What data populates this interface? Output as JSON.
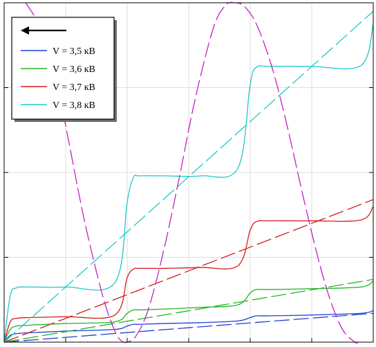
{
  "chart_data": {
    "type": "line",
    "title": "",
    "xlabel": "",
    "ylabel": "",
    "xlim": [
      0,
      6
    ],
    "ylim": [
      0,
      4
    ],
    "grid": true,
    "legend_placement": "top-left",
    "legend": {
      "arrow": "left-arrow",
      "entries": [
        {
          "label": "V = 3,5 кВ",
          "color": "#1f3fd6"
        },
        {
          "label": "V = 3,6 кВ",
          "color": "#22b422"
        },
        {
          "label": "V = 3,7 кВ",
          "color": "#d41a1a"
        },
        {
          "label": "V = 3,8 кВ",
          "color": "#1fc8c8"
        }
      ]
    },
    "series": [
      {
        "color": "#1f3fd6",
        "style": "solid",
        "x": [
          0,
          0.1,
          0.2,
          0.4,
          1.0,
          1.8,
          2.0,
          2.1,
          2.2,
          2.6,
          3.2,
          3.8,
          4.0,
          4.1,
          4.3,
          5.0,
          5.8,
          6.0
        ],
        "y": [
          0,
          0.08,
          0.1,
          0.11,
          0.13,
          0.15,
          0.19,
          0.21,
          0.21,
          0.22,
          0.23,
          0.25,
          0.29,
          0.31,
          0.31,
          0.32,
          0.34,
          0.37
        ]
      },
      {
        "color": "#1f3fd6",
        "style": "dashed",
        "x": [
          0,
          6
        ],
        "y": [
          0,
          0.34
        ]
      },
      {
        "color": "#22b422",
        "style": "solid",
        "x": [
          0,
          0.1,
          0.2,
          0.4,
          1.0,
          1.8,
          2.0,
          2.1,
          2.2,
          2.6,
          3.2,
          3.8,
          4.0,
          4.1,
          4.3,
          5.0,
          5.8,
          6.0
        ],
        "y": [
          0,
          0.15,
          0.19,
          0.2,
          0.22,
          0.24,
          0.34,
          0.38,
          0.38,
          0.39,
          0.41,
          0.44,
          0.58,
          0.62,
          0.62,
          0.63,
          0.65,
          0.72
        ]
      },
      {
        "color": "#22b422",
        "style": "dashed",
        "x": [
          0,
          6
        ],
        "y": [
          0,
          0.74
        ]
      },
      {
        "color": "#d41a1a",
        "style": "solid",
        "x": [
          0,
          0.1,
          0.2,
          0.4,
          1.0,
          1.8,
          2.0,
          2.1,
          2.2,
          2.6,
          3.2,
          3.8,
          4.0,
          4.1,
          4.3,
          5.0,
          5.8,
          6.0
        ],
        "y": [
          0,
          0.24,
          0.28,
          0.29,
          0.3,
          0.32,
          0.76,
          0.86,
          0.87,
          0.87,
          0.88,
          0.9,
          1.32,
          1.42,
          1.43,
          1.43,
          1.44,
          1.6
        ]
      },
      {
        "color": "#d41a1a",
        "style": "dashed",
        "x": [
          0,
          6
        ],
        "y": [
          0,
          1.68
        ]
      },
      {
        "color": "#1fc8c8",
        "style": "solid",
        "x": [
          0,
          0.1,
          0.2,
          0.4,
          1.0,
          1.8,
          2.0,
          2.1,
          2.2,
          2.6,
          3.2,
          3.8,
          4.0,
          4.1,
          4.3,
          5.0,
          5.8,
          6.0
        ],
        "y": [
          0,
          0.55,
          0.64,
          0.65,
          0.65,
          0.7,
          1.65,
          1.94,
          1.96,
          1.96,
          1.96,
          2.05,
          3.04,
          3.24,
          3.25,
          3.25,
          3.26,
          3.75
        ]
      },
      {
        "color": "#1fc8c8",
        "style": "dashed",
        "x": [
          0,
          6
        ],
        "y": [
          0,
          3.9
        ]
      },
      {
        "color": "#c21fc2",
        "style": "dashed",
        "x": [
          0.35,
          0.6,
          0.8,
          1.0,
          1.3,
          1.6,
          1.8,
          1.9,
          2.0,
          2.15,
          2.35,
          2.6,
          2.85,
          3.1,
          3.4,
          3.6,
          3.75,
          3.9,
          4.1,
          4.35,
          4.6,
          4.85,
          5.1,
          5.3,
          5.5,
          5.7,
          5.75
        ],
        "y": [
          4.0,
          3.7,
          3.25,
          2.55,
          1.45,
          0.55,
          0.13,
          0.02,
          0.0,
          0.08,
          0.4,
          1.1,
          1.95,
          2.85,
          3.7,
          3.97,
          4.0,
          3.96,
          3.75,
          3.25,
          2.55,
          1.75,
          1.0,
          0.5,
          0.15,
          0.0,
          0.0
        ]
      }
    ]
  }
}
